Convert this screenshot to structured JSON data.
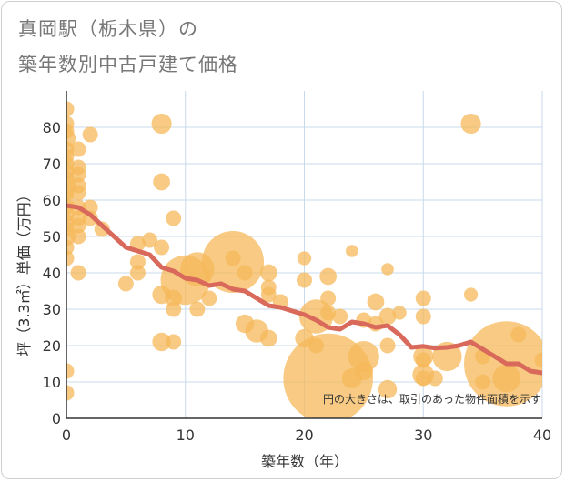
{
  "header": {
    "title_line1": "真岡駅（栃木県）の",
    "title_line2": "築年数別中古戸建て価格"
  },
  "chart_data": {
    "type": "scatter",
    "title": "真岡駅（栃木県）の築年数別中古戸建て価格",
    "xlabel": "築年数（年）",
    "ylabel": "坪（3.3㎡）単価（万円）",
    "xlim": [
      0,
      40
    ],
    "ylim": [
      0,
      90
    ],
    "xticks": [
      0,
      10,
      20,
      30,
      40
    ],
    "yticks": [
      0,
      10,
      20,
      30,
      40,
      50,
      60,
      70,
      80
    ],
    "grid": true,
    "annotation": "円の大きさは、取引のあった物件面積を示す",
    "colors": {
      "bubble": "#f5b85a",
      "trend": "#d9695a",
      "grid": "#c8d9ec",
      "axis": "#333333"
    },
    "bubbles": [
      {
        "x": 0,
        "y": 85,
        "s": 1
      },
      {
        "x": 0,
        "y": 81,
        "s": 1
      },
      {
        "x": 0,
        "y": 79,
        "s": 1
      },
      {
        "x": 0,
        "y": 77,
        "s": 1.2
      },
      {
        "x": 0,
        "y": 74,
        "s": 1
      },
      {
        "x": 0,
        "y": 72,
        "s": 1
      },
      {
        "x": 0,
        "y": 70,
        "s": 1
      },
      {
        "x": 0,
        "y": 68,
        "s": 1
      },
      {
        "x": 0,
        "y": 66,
        "s": 1
      },
      {
        "x": 0,
        "y": 64,
        "s": 1.2
      },
      {
        "x": 0,
        "y": 62,
        "s": 1
      },
      {
        "x": 0,
        "y": 60,
        "s": 1
      },
      {
        "x": 0,
        "y": 58,
        "s": 1
      },
      {
        "x": 0,
        "y": 56,
        "s": 1
      },
      {
        "x": 0,
        "y": 54,
        "s": 1
      },
      {
        "x": 0,
        "y": 52,
        "s": 1
      },
      {
        "x": 0,
        "y": 50,
        "s": 1.2
      },
      {
        "x": 0,
        "y": 47,
        "s": 1
      },
      {
        "x": 0,
        "y": 44,
        "s": 1
      },
      {
        "x": 0,
        "y": 13,
        "s": 1
      },
      {
        "x": 0,
        "y": 7,
        "s": 1
      },
      {
        "x": 1,
        "y": 74,
        "s": 1
      },
      {
        "x": 1,
        "y": 69,
        "s": 1
      },
      {
        "x": 1,
        "y": 67,
        "s": 1
      },
      {
        "x": 1,
        "y": 64,
        "s": 1
      },
      {
        "x": 1,
        "y": 62,
        "s": 1
      },
      {
        "x": 1,
        "y": 58,
        "s": 1
      },
      {
        "x": 1,
        "y": 55,
        "s": 1
      },
      {
        "x": 1,
        "y": 53,
        "s": 1
      },
      {
        "x": 1,
        "y": 50,
        "s": 1
      },
      {
        "x": 1,
        "y": 40,
        "s": 1
      },
      {
        "x": 2,
        "y": 78,
        "s": 1
      },
      {
        "x": 2,
        "y": 58,
        "s": 1
      },
      {
        "x": 2,
        "y": 55,
        "s": 1
      },
      {
        "x": 3,
        "y": 52,
        "s": 1
      },
      {
        "x": 5,
        "y": 37,
        "s": 1
      },
      {
        "x": 6,
        "y": 48,
        "s": 1
      },
      {
        "x": 6,
        "y": 43,
        "s": 1
      },
      {
        "x": 6,
        "y": 40,
        "s": 1
      },
      {
        "x": 7,
        "y": 49,
        "s": 1
      },
      {
        "x": 8,
        "y": 81,
        "s": 1.3
      },
      {
        "x": 8,
        "y": 65,
        "s": 1.1
      },
      {
        "x": 8,
        "y": 47,
        "s": 1
      },
      {
        "x": 8,
        "y": 34,
        "s": 1.2
      },
      {
        "x": 8,
        "y": 21,
        "s": 1.2
      },
      {
        "x": 9,
        "y": 55,
        "s": 1
      },
      {
        "x": 9,
        "y": 33,
        "s": 1.1
      },
      {
        "x": 9,
        "y": 30,
        "s": 1
      },
      {
        "x": 9,
        "y": 21,
        "s": 1
      },
      {
        "x": 10,
        "y": 38,
        "s": 3.2
      },
      {
        "x": 11,
        "y": 41,
        "s": 2.2
      },
      {
        "x": 11,
        "y": 30,
        "s": 1
      },
      {
        "x": 12,
        "y": 33,
        "s": 1
      },
      {
        "x": 14,
        "y": 44,
        "s": 1
      },
      {
        "x": 14,
        "y": 43,
        "s": 4
      },
      {
        "x": 15,
        "y": 40,
        "s": 1
      },
      {
        "x": 15,
        "y": 26,
        "s": 1.2
      },
      {
        "x": 16,
        "y": 24,
        "s": 1.5
      },
      {
        "x": 17,
        "y": 40,
        "s": 1.1
      },
      {
        "x": 17,
        "y": 36,
        "s": 1
      },
      {
        "x": 17,
        "y": 34,
        "s": 1
      },
      {
        "x": 17,
        "y": 22,
        "s": 1.1
      },
      {
        "x": 18,
        "y": 32,
        "s": 1
      },
      {
        "x": 20,
        "y": 44,
        "s": 0.9
      },
      {
        "x": 20,
        "y": 38,
        "s": 1
      },
      {
        "x": 20,
        "y": 22,
        "s": 1.2
      },
      {
        "x": 21,
        "y": 28,
        "s": 2.2
      },
      {
        "x": 21,
        "y": 20,
        "s": 1
      },
      {
        "x": 22,
        "y": 39,
        "s": 1.1
      },
      {
        "x": 22,
        "y": 33,
        "s": 1
      },
      {
        "x": 22,
        "y": 29,
        "s": 1
      },
      {
        "x": 22,
        "y": 11,
        "s": 5.8
      },
      {
        "x": 23,
        "y": 28,
        "s": 1
      },
      {
        "x": 24,
        "y": 46,
        "s": 0.8
      },
      {
        "x": 24,
        "y": 11,
        "s": 1.3
      },
      {
        "x": 25,
        "y": 27,
        "s": 1
      },
      {
        "x": 25,
        "y": 17,
        "s": 2
      },
      {
        "x": 25,
        "y": 13,
        "s": 1.2
      },
      {
        "x": 26,
        "y": 32,
        "s": 1.1
      },
      {
        "x": 26,
        "y": 26,
        "s": 1
      },
      {
        "x": 27,
        "y": 41,
        "s": 0.8
      },
      {
        "x": 27,
        "y": 28,
        "s": 1.1
      },
      {
        "x": 27,
        "y": 20,
        "s": 1
      },
      {
        "x": 27,
        "y": 8,
        "s": 1.2
      },
      {
        "x": 28,
        "y": 29,
        "s": 0.9
      },
      {
        "x": 30,
        "y": 33,
        "s": 1
      },
      {
        "x": 30,
        "y": 28,
        "s": 1
      },
      {
        "x": 30,
        "y": 17,
        "s": 1.3
      },
      {
        "x": 30,
        "y": 16,
        "s": 1
      },
      {
        "x": 30,
        "y": 12,
        "s": 1.4
      },
      {
        "x": 30,
        "y": 11,
        "s": 1
      },
      {
        "x": 31,
        "y": 11,
        "s": 1
      },
      {
        "x": 32,
        "y": 17,
        "s": 1.9
      },
      {
        "x": 34,
        "y": 81,
        "s": 1.3
      },
      {
        "x": 34,
        "y": 34,
        "s": 0.9
      },
      {
        "x": 35,
        "y": 17,
        "s": 1
      },
      {
        "x": 35,
        "y": 10,
        "s": 1
      },
      {
        "x": 37,
        "y": 15,
        "s": 5.5
      },
      {
        "x": 37,
        "y": 11,
        "s": 1.8
      },
      {
        "x": 38,
        "y": 23,
        "s": 1
      },
      {
        "x": 40,
        "y": 16,
        "s": 1
      }
    ],
    "trend": {
      "x": [
        0,
        1,
        2,
        3,
        4,
        5,
        6,
        7,
        8,
        9,
        10,
        11,
        12,
        13,
        14,
        15,
        16,
        17,
        18,
        19,
        20,
        21,
        22,
        23,
        24,
        25,
        26,
        27,
        28,
        29,
        30,
        31,
        32,
        33,
        34,
        35,
        36,
        37,
        38,
        39,
        40
      ],
      "y": [
        58.5,
        58,
        56,
        53,
        50,
        47,
        46,
        45,
        41.5,
        40.5,
        38.5,
        38,
        36.5,
        37,
        35.5,
        35,
        33,
        31,
        30.5,
        29.5,
        28.5,
        27,
        25,
        24.5,
        26.5,
        26,
        25,
        25.5,
        23,
        19.5,
        19.8,
        19.3,
        19.5,
        20,
        21,
        19,
        17,
        15,
        15,
        13,
        12.5
      ]
    }
  }
}
